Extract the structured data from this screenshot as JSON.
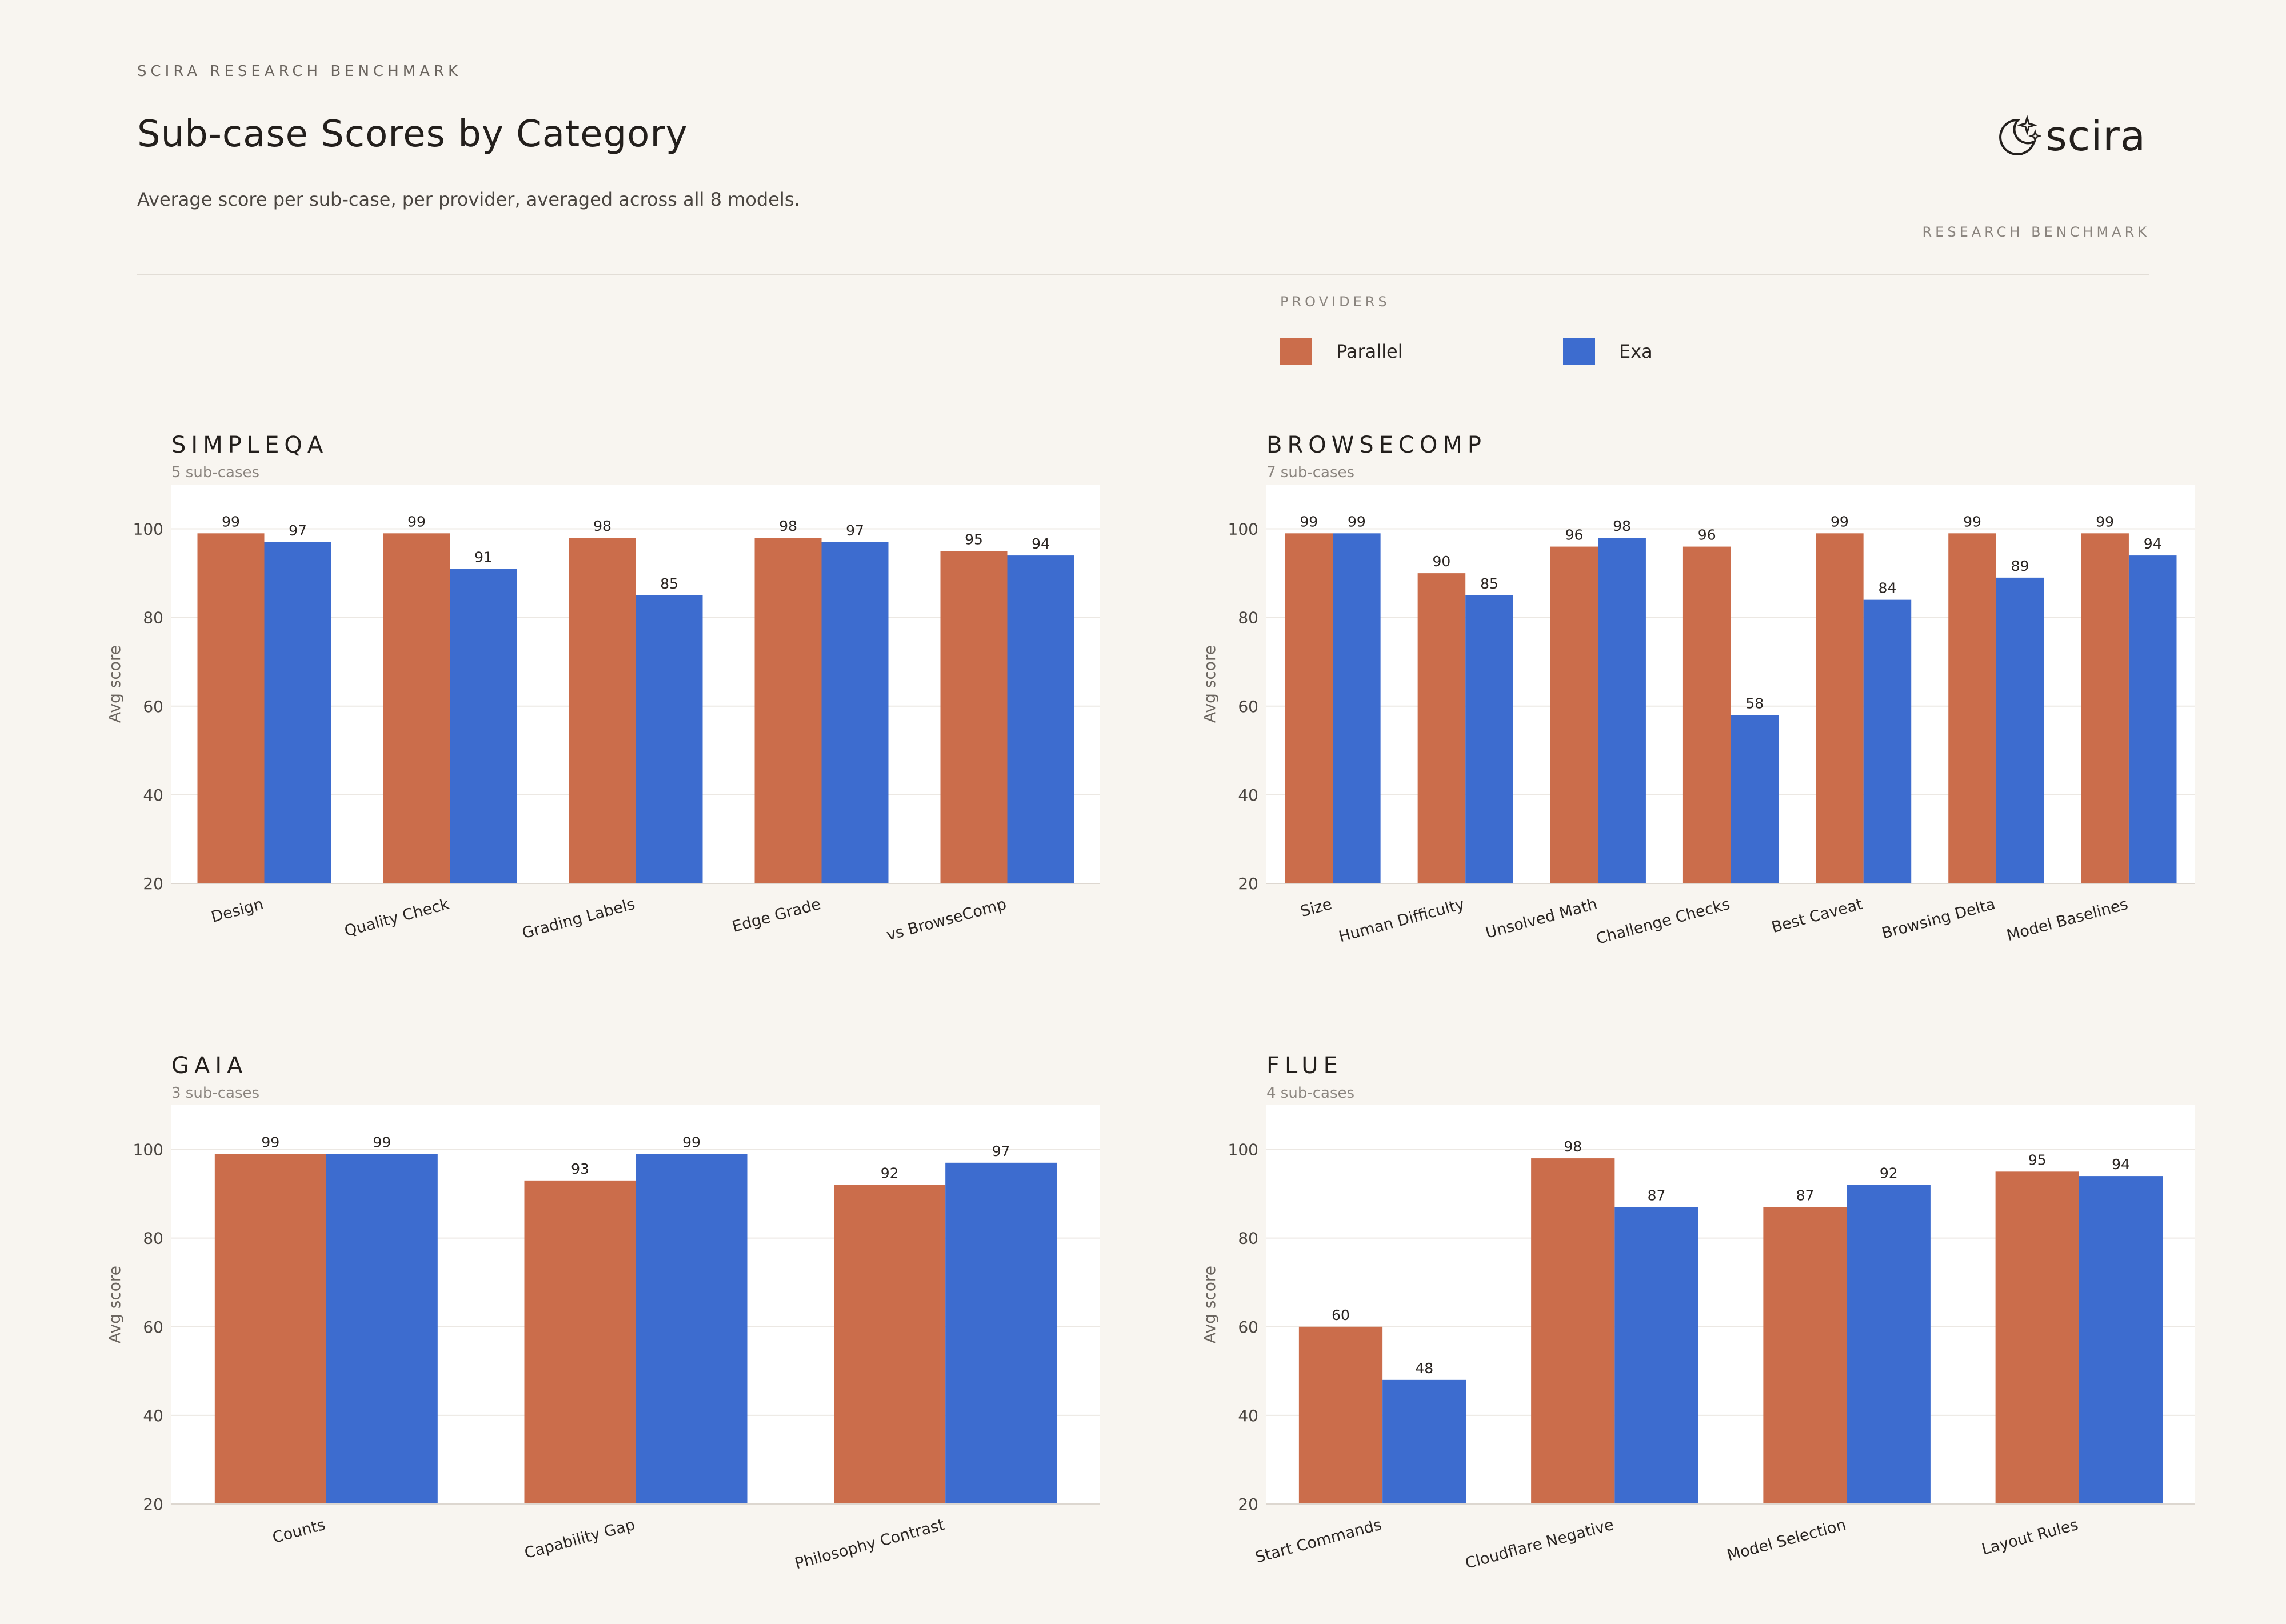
{
  "header": {
    "eyebrow": "SCIRA RESEARCH BENCHMARK",
    "title": "Sub-case Scores by Category",
    "subtitle": "Average score per sub-case, per provider, averaged across all 8 models.",
    "logo_text": "scira",
    "logo_tagline": "RESEARCH BENCHMARK"
  },
  "legend": {
    "title": "PROVIDERS",
    "items": [
      {
        "name": "Parallel",
        "color": "#cb6d4b"
      },
      {
        "name": "Exa",
        "color": "#3d6ccf"
      }
    ]
  },
  "chart_data": [
    {
      "type": "bar",
      "title": "SIMPLEQA",
      "subtitle": "5 sub-cases",
      "ylabel": "Avg score",
      "ylim": [
        20,
        110
      ],
      "yticks": [
        20,
        40,
        60,
        80,
        100
      ],
      "categories": [
        "Design",
        "Quality Check",
        "Grading Labels",
        "Edge Grade",
        "vs BrowseComp"
      ],
      "series": [
        {
          "name": "Parallel",
          "color": "#cb6d4b",
          "values": [
            99,
            99,
            98,
            98,
            95
          ]
        },
        {
          "name": "Exa",
          "color": "#3d6ccf",
          "values": [
            97,
            91,
            85,
            97,
            94
          ]
        }
      ]
    },
    {
      "type": "bar",
      "title": "BROWSECOMP",
      "subtitle": "7 sub-cases",
      "ylabel": "Avg score",
      "ylim": [
        20,
        110
      ],
      "yticks": [
        20,
        40,
        60,
        80,
        100
      ],
      "categories": [
        "Size",
        "Human Difficulty",
        "Unsolved Math",
        "Challenge Checks",
        "Best Caveat",
        "Browsing Delta",
        "Model Baselines"
      ],
      "series": [
        {
          "name": "Parallel",
          "color": "#cb6d4b",
          "values": [
            99,
            90,
            96,
            96,
            99,
            99,
            99
          ]
        },
        {
          "name": "Exa",
          "color": "#3d6ccf",
          "values": [
            99,
            85,
            98,
            58,
            84,
            89,
            94
          ]
        }
      ]
    },
    {
      "type": "bar",
      "title": "GAIA",
      "subtitle": "3 sub-cases",
      "ylabel": "Avg score",
      "ylim": [
        20,
        110
      ],
      "yticks": [
        20,
        40,
        60,
        80,
        100
      ],
      "categories": [
        "Counts",
        "Capability Gap",
        "Philosophy Contrast"
      ],
      "series": [
        {
          "name": "Parallel",
          "color": "#cb6d4b",
          "values": [
            99,
            93,
            92
          ]
        },
        {
          "name": "Exa",
          "color": "#3d6ccf",
          "values": [
            99,
            99,
            97
          ]
        }
      ]
    },
    {
      "type": "bar",
      "title": "FLUE",
      "subtitle": "4 sub-cases",
      "ylabel": "Avg score",
      "ylim": [
        20,
        110
      ],
      "yticks": [
        20,
        40,
        60,
        80,
        100
      ],
      "categories": [
        "Start Commands",
        "Cloudflare Negative",
        "Model Selection",
        "Layout Rules"
      ],
      "series": [
        {
          "name": "Parallel",
          "color": "#cb6d4b",
          "values": [
            60,
            98,
            87,
            95
          ]
        },
        {
          "name": "Exa",
          "color": "#3d6ccf",
          "values": [
            48,
            87,
            92,
            94
          ]
        }
      ]
    }
  ]
}
